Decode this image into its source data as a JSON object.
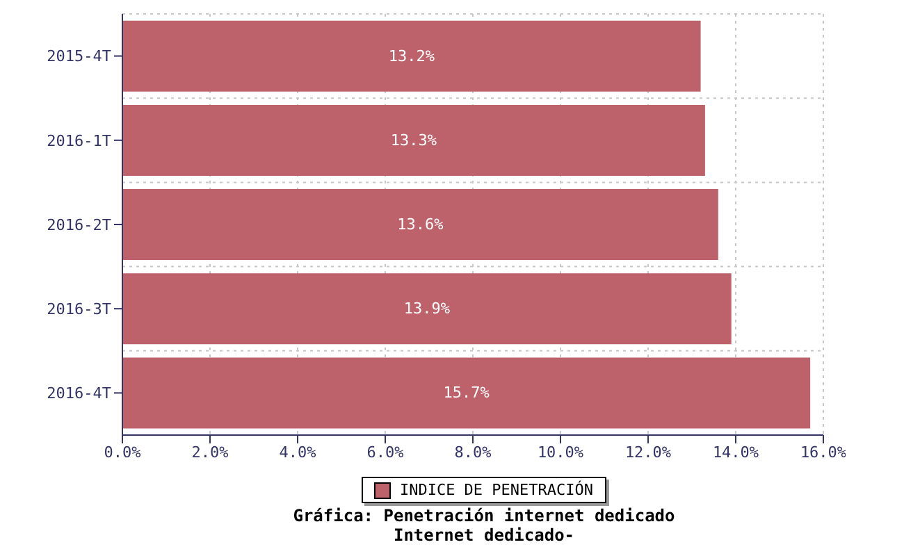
{
  "chart_data": {
    "type": "bar",
    "orientation": "horizontal",
    "title": "Gráfica: Penetración internet dedicado",
    "subtitle": "Internet dedicado-",
    "categories": [
      "2015-4T",
      "2016-1T",
      "2016-2T",
      "2016-3T",
      "2016-4T"
    ],
    "series": [
      {
        "name": "INDICE DE PENETRACIÓN",
        "color": "#bd616a",
        "values": [
          13.2,
          13.3,
          13.6,
          13.9,
          15.7
        ],
        "value_labels": [
          "13.2%",
          "13.3%",
          "13.6%",
          "13.9%",
          "15.7%"
        ]
      }
    ],
    "xlim": [
      0,
      16
    ],
    "xticks": [
      {
        "value": 0,
        "label": "0.0%"
      },
      {
        "value": 2,
        "label": "2.0%"
      },
      {
        "value": 4,
        "label": "4.0%"
      },
      {
        "value": 6,
        "label": "6.0%"
      },
      {
        "value": 8,
        "label": "8.0%"
      },
      {
        "value": 10,
        "label": "10.0%"
      },
      {
        "value": 12,
        "label": "12.0%"
      },
      {
        "value": 14,
        "label": "14.0%"
      },
      {
        "value": 16,
        "label": "16.0%"
      }
    ],
    "grid": true,
    "legend": "bottom"
  }
}
